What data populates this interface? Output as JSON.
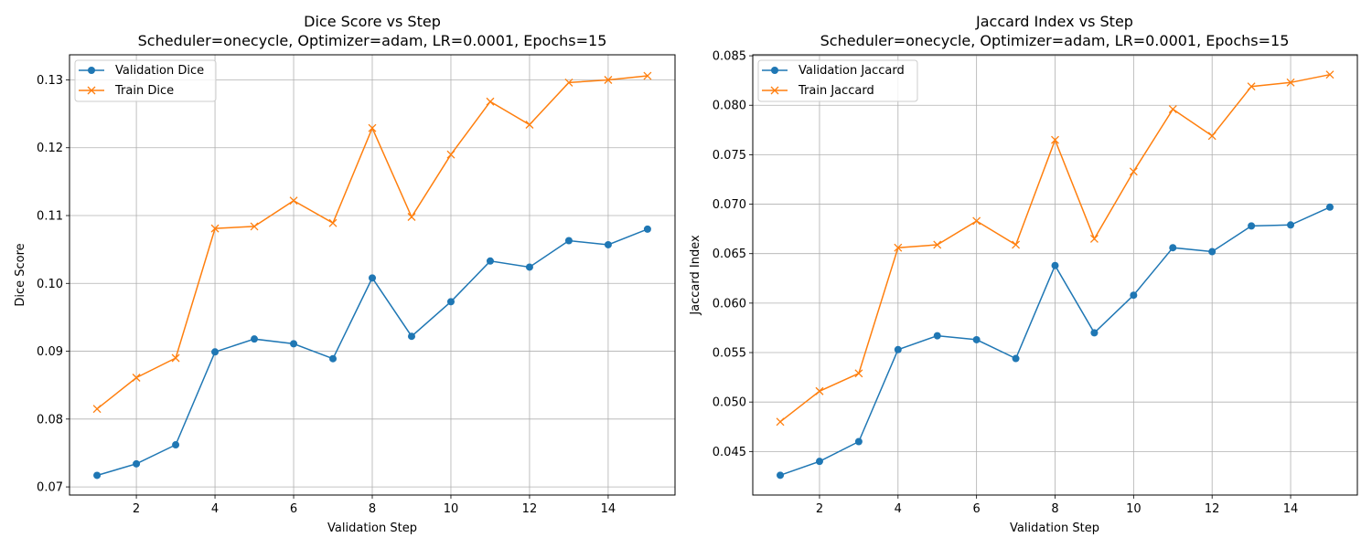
{
  "chart_data": [
    {
      "type": "line",
      "title": "Dice Score vs Step",
      "subtitle": "Scheduler=onecycle, Optimizer=adam, LR=0.0001, Epochs=15",
      "xlabel": "Validation Step",
      "ylabel": "Dice Score",
      "xlim": [
        0.3,
        15.7
      ],
      "ylim": [
        0.0688,
        0.1337
      ],
      "xticks": [
        2,
        4,
        6,
        8,
        10,
        12,
        14
      ],
      "xtick_labels": [
        "2",
        "4",
        "6",
        "8",
        "10",
        "12",
        "14"
      ],
      "yticks": [
        0.07,
        0.08,
        0.09,
        0.1,
        0.11,
        0.12,
        0.13
      ],
      "ytick_labels": [
        "0.07",
        "0.08",
        "0.09",
        "0.10",
        "0.11",
        "0.12",
        "0.13"
      ],
      "grid": true,
      "legend_position": "top-left",
      "x": [
        1,
        2,
        3,
        4,
        5,
        6,
        7,
        8,
        9,
        10,
        11,
        12,
        13,
        14,
        15
      ],
      "series": [
        {
          "name": "Validation Dice",
          "color": "#1f77b4",
          "marker": "circle",
          "values": [
            0.0717,
            0.0734,
            0.0762,
            0.0899,
            0.0918,
            0.0911,
            0.0889,
            0.1008,
            0.0922,
            0.0973,
            0.1033,
            0.1024,
            0.1063,
            0.1057,
            0.108
          ]
        },
        {
          "name": "Train Dice",
          "color": "#ff7f0e",
          "marker": "x",
          "values": [
            0.0815,
            0.0861,
            0.089,
            0.1081,
            0.1084,
            0.1122,
            0.1089,
            0.1229,
            0.1098,
            0.119,
            0.1268,
            0.1234,
            0.1296,
            0.13,
            0.1306
          ]
        }
      ]
    },
    {
      "type": "line",
      "title": "Jaccard Index vs Step",
      "subtitle": "Scheduler=onecycle, Optimizer=adam, LR=0.0001, Epochs=15",
      "xlabel": "Validation Step",
      "ylabel": "Jaccard Index",
      "xlim": [
        0.3,
        15.7
      ],
      "ylim": [
        0.0406,
        0.0851
      ],
      "xticks": [
        2,
        4,
        6,
        8,
        10,
        12,
        14
      ],
      "xtick_labels": [
        "2",
        "4",
        "6",
        "8",
        "10",
        "12",
        "14"
      ],
      "yticks": [
        0.045,
        0.05,
        0.055,
        0.06,
        0.065,
        0.07,
        0.075,
        0.08,
        0.085
      ],
      "ytick_labels": [
        "0.045",
        "0.050",
        "0.055",
        "0.060",
        "0.065",
        "0.070",
        "0.075",
        "0.080",
        "0.085"
      ],
      "grid": true,
      "legend_position": "top-left",
      "x": [
        1,
        2,
        3,
        4,
        5,
        6,
        7,
        8,
        9,
        10,
        11,
        12,
        13,
        14,
        15
      ],
      "series": [
        {
          "name": "Validation Jaccard",
          "color": "#1f77b4",
          "marker": "circle",
          "values": [
            0.0426,
            0.044,
            0.046,
            0.0553,
            0.0567,
            0.0563,
            0.0544,
            0.0638,
            0.057,
            0.0608,
            0.0656,
            0.0652,
            0.0678,
            0.0679,
            0.0697
          ]
        },
        {
          "name": "Train Jaccard",
          "color": "#ff7f0e",
          "marker": "x",
          "values": [
            0.048,
            0.0511,
            0.0529,
            0.0656,
            0.0659,
            0.0683,
            0.0659,
            0.0765,
            0.0665,
            0.0733,
            0.0796,
            0.0769,
            0.0819,
            0.0823,
            0.0831
          ]
        }
      ]
    }
  ]
}
